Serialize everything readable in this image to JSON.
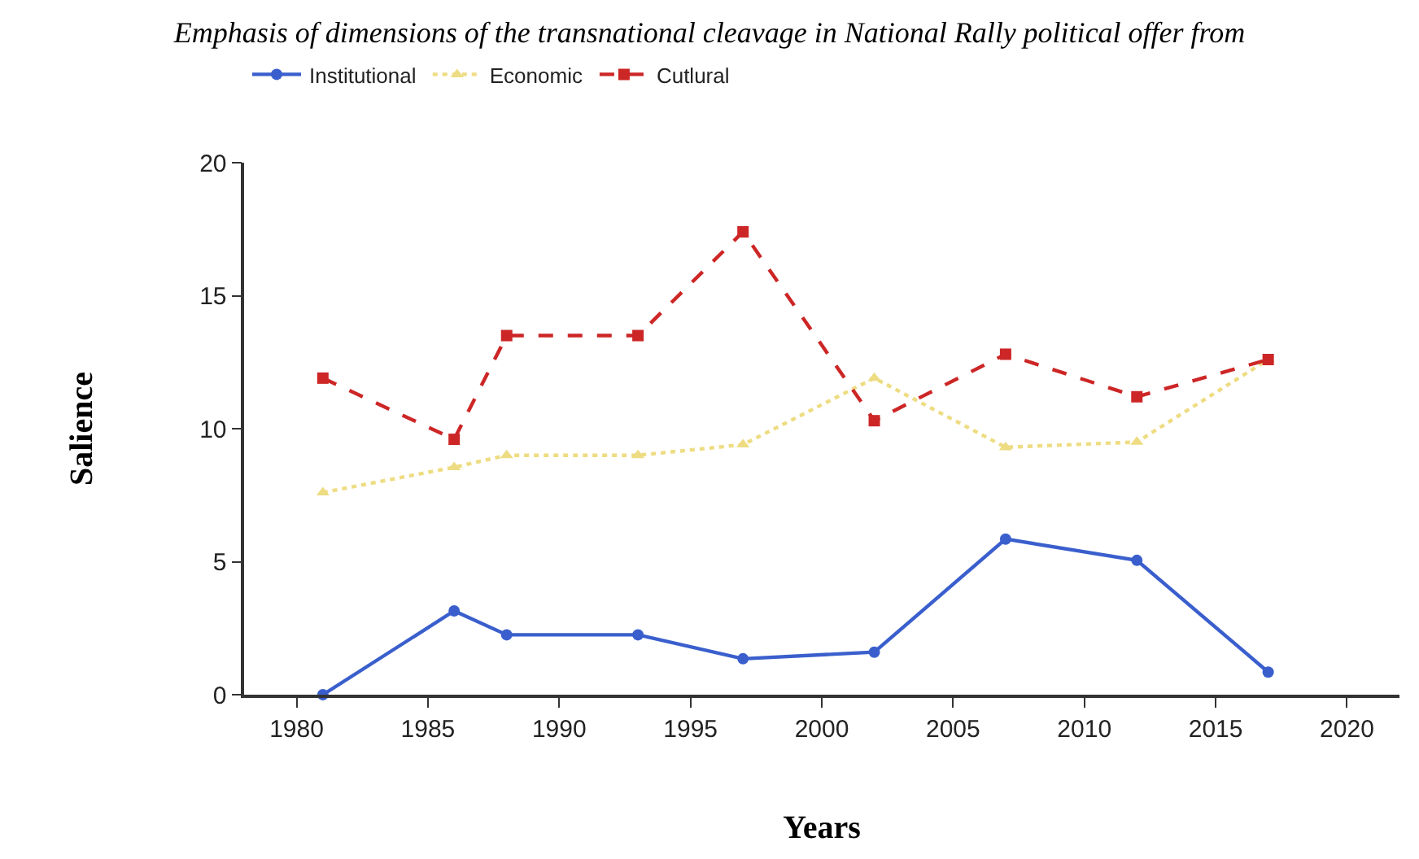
{
  "chart_data": {
    "type": "line",
    "title": "Emphasis of dimensions of the transnational cleavage in National Rally political offer from",
    "xlabel": "Years",
    "ylabel": "Salience",
    "x": [
      1981,
      1986,
      1988,
      1993,
      1997,
      2002,
      2007,
      2012,
      2017
    ],
    "series": [
      {
        "name": "Institutional",
        "color": "#3a5fcd",
        "values": [
          0,
          3.15,
          2.25,
          2.25,
          1.35,
          1.6,
          5.85,
          5.05,
          0.85
        ],
        "marker": "circle",
        "line_style": "solid"
      },
      {
        "name": "Economic",
        "color": "#eedc82",
        "values": [
          7.6,
          8.55,
          9.0,
          9.0,
          9.4,
          11.9,
          9.3,
          9.5,
          12.6
        ],
        "marker": "triangle",
        "line_style": "dotted"
      },
      {
        "name": "Cutlural",
        "color": "#cd2626",
        "values": [
          11.9,
          9.6,
          13.5,
          13.5,
          17.4,
          10.3,
          12.8,
          11.2,
          12.6
        ],
        "marker": "square",
        "line_style": "dashed"
      }
    ],
    "xlim": [
      1978,
      2022
    ],
    "xticks": [
      1980,
      1985,
      1990,
      1995,
      2000,
      2005,
      2010,
      2015,
      2020
    ],
    "ylim": [
      0,
      20
    ],
    "yticks": [
      0,
      5,
      10,
      15,
      20
    ],
    "legend": "top left"
  }
}
